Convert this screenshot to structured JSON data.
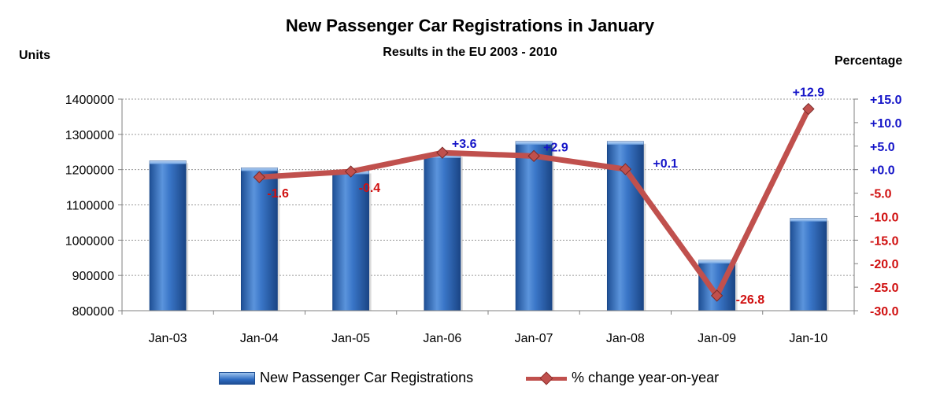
{
  "chart_data": {
    "type": "bar",
    "title": "New Passenger Car Registrations in January",
    "subtitle": "Results in the EU 2003 - 2010",
    "ylabel_left": "Units",
    "ylabel_right": "Percentage",
    "categories": [
      "Jan-03",
      "Jan-04",
      "Jan-05",
      "Jan-06",
      "Jan-07",
      "Jan-08",
      "Jan-09",
      "Jan-10"
    ],
    "series": [
      {
        "name": "New Passenger Car Registrations",
        "type": "bar",
        "axis": "left",
        "values": [
          1225000,
          1205000,
          1196000,
          1242000,
          1280000,
          1280000,
          943000,
          1062000
        ]
      },
      {
        "name": "% change year-on-year",
        "type": "line",
        "axis": "right",
        "values": [
          null,
          -1.6,
          -0.4,
          3.6,
          2.9,
          0.1,
          -26.8,
          12.9
        ],
        "labels": [
          "",
          "-1.6",
          "-0.4",
          "+3.6",
          "+2.9",
          "+0.1",
          "-26.8",
          "+12.9"
        ]
      }
    ],
    "ylim_left": [
      800000,
      1400000
    ],
    "yticks_left": [
      "800000",
      "900000",
      "1000000",
      "1100000",
      "1200000",
      "1300000",
      "1400000"
    ],
    "ylim_right": [
      -30,
      15
    ],
    "yticks_right": [
      "-30.0",
      "-25.0",
      "-20.0",
      "-15.0",
      "-10.0",
      "-5.0",
      "+0.0",
      "+5.0",
      "+10.0",
      "+15.0"
    ],
    "grid": true,
    "legend_position": "bottom",
    "colors": {
      "bar": "#2f6cc2",
      "line": "#c0504d",
      "positive": "#1515c8",
      "negative": "#d01010"
    }
  }
}
